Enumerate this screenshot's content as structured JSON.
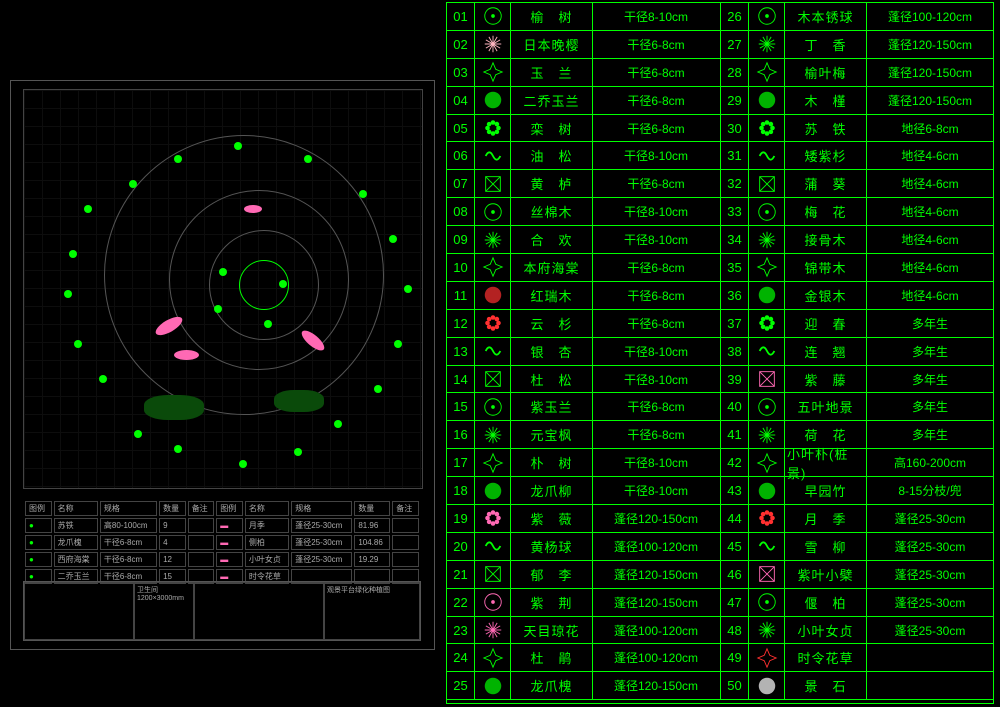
{
  "colors": {
    "bg": "#000000",
    "line": "#00ff00",
    "grid": "#222222",
    "border": "#555555",
    "pink": "#ff69b4",
    "red": "#ff3030",
    "cyan": "#00ffff"
  },
  "drawing": {
    "title": "观景平台绿化种植图",
    "subtitle": "卫生间1200×3000mm",
    "scale": "1:200"
  },
  "small_legend": {
    "headers": [
      "图例",
      "名称",
      "规格",
      "数量",
      "备注"
    ],
    "left": [
      {
        "name": "苏铁",
        "spec": "高80-100cm",
        "qty": "9"
      },
      {
        "name": "龙爪槐",
        "spec": "干径6-8cm",
        "qty": "4"
      },
      {
        "name": "西府海棠",
        "spec": "干径6-8cm",
        "qty": "12"
      },
      {
        "name": "二乔玉兰",
        "spec": "干径6-8cm",
        "qty": "15"
      }
    ],
    "right": [
      {
        "name": "月季",
        "spec": "蓬径25-30cm",
        "qty": "81.96"
      },
      {
        "name": "侧柏",
        "spec": "蓬径25-30cm",
        "qty": "104.86"
      },
      {
        "name": "小叶女贞",
        "spec": "蓬径25-30cm",
        "qty": "19.29"
      },
      {
        "name": "时令花草",
        "spec": "",
        "qty": ""
      }
    ]
  },
  "plants": [
    {
      "n": "01",
      "name": "榆　树",
      "spec": "干径8-10cm",
      "c": "#00ff00"
    },
    {
      "n": "02",
      "name": "日本晚樱",
      "spec": "干径6-8cm",
      "c": "#ffb6c1"
    },
    {
      "n": "03",
      "name": "玉　兰",
      "spec": "干径6-8cm",
      "c": "#00ff00"
    },
    {
      "n": "04",
      "name": "二乔玉兰",
      "spec": "干径6-8cm",
      "c": "#00ff00"
    },
    {
      "n": "05",
      "name": "栾　树",
      "spec": "干径6-8cm",
      "c": "#00ff00"
    },
    {
      "n": "06",
      "name": "油　松",
      "spec": "干径8-10cm",
      "c": "#00ff00"
    },
    {
      "n": "07",
      "name": "黄　栌",
      "spec": "干径6-8cm",
      "c": "#00ff00"
    },
    {
      "n": "08",
      "name": "丝棉木",
      "spec": "干径8-10cm",
      "c": "#00ff00"
    },
    {
      "n": "09",
      "name": "合　欢",
      "spec": "干径8-10cm",
      "c": "#00ff00"
    },
    {
      "n": "10",
      "name": "本府海棠",
      "spec": "干径6-8cm",
      "c": "#00ff00"
    },
    {
      "n": "11",
      "name": "红瑞木",
      "spec": "干径6-8cm",
      "c": "#ff3030"
    },
    {
      "n": "12",
      "name": "云　杉",
      "spec": "干径6-8cm",
      "c": "#ff3030"
    },
    {
      "n": "13",
      "name": "银　杏",
      "spec": "干径8-10cm",
      "c": "#00ff00"
    },
    {
      "n": "14",
      "name": "杜　松",
      "spec": "干径8-10cm",
      "c": "#00ff00"
    },
    {
      "n": "15",
      "name": "紫玉兰",
      "spec": "干径6-8cm",
      "c": "#00ff00"
    },
    {
      "n": "16",
      "name": "元宝枫",
      "spec": "干径6-8cm",
      "c": "#00ff00"
    },
    {
      "n": "17",
      "name": "朴　树",
      "spec": "干径8-10cm",
      "c": "#00ff00"
    },
    {
      "n": "18",
      "name": "龙爪柳",
      "spec": "干径8-10cm",
      "c": "#00ff00"
    },
    {
      "n": "19",
      "name": "紫　薇",
      "spec": "蓬径120-150cm",
      "c": "#ff69b4"
    },
    {
      "n": "20",
      "name": "黄杨球",
      "spec": "蓬径100-120cm",
      "c": "#00ff00"
    },
    {
      "n": "21",
      "name": "郁　李",
      "spec": "蓬径120-150cm",
      "c": "#00ff00"
    },
    {
      "n": "22",
      "name": "紫　荆",
      "spec": "蓬径120-150cm",
      "c": "#ff69b4"
    },
    {
      "n": "23",
      "name": "天目琼花",
      "spec": "蓬径100-120cm",
      "c": "#ff69b4"
    },
    {
      "n": "24",
      "name": "杜　鹃",
      "spec": "蓬径100-120cm",
      "c": "#00ff00"
    },
    {
      "n": "25",
      "name": "龙爪槐",
      "spec": "蓬径120-150cm",
      "c": "#00ff00"
    },
    {
      "n": "26",
      "name": "木本锈球",
      "spec": "蓬径100-120cm",
      "c": "#00ff00"
    },
    {
      "n": "27",
      "name": "丁　香",
      "spec": "蓬径120-150cm",
      "c": "#00ff00"
    },
    {
      "n": "28",
      "name": "榆叶梅",
      "spec": "蓬径120-150cm",
      "c": "#00ff00"
    },
    {
      "n": "29",
      "name": "木　槿",
      "spec": "蓬径120-150cm",
      "c": "#00ff00"
    },
    {
      "n": "30",
      "name": "苏　铁",
      "spec": "地径6-8cm",
      "c": "#00ff00"
    },
    {
      "n": "31",
      "name": "矮紫杉",
      "spec": "地径4-6cm",
      "c": "#00ff00"
    },
    {
      "n": "32",
      "name": "蒲　葵",
      "spec": "地径4-6cm",
      "c": "#00ff00"
    },
    {
      "n": "33",
      "name": "梅　花",
      "spec": "地径4-6cm",
      "c": "#00ff00"
    },
    {
      "n": "34",
      "name": "接骨木",
      "spec": "地径4-6cm",
      "c": "#00ff00"
    },
    {
      "n": "35",
      "name": "锦带木",
      "spec": "地径4-6cm",
      "c": "#00ff00"
    },
    {
      "n": "36",
      "name": "金银木",
      "spec": "地径4-6cm",
      "c": "#00ff00"
    },
    {
      "n": "37",
      "name": "迎　春",
      "spec": "多年生",
      "c": "#00ff00"
    },
    {
      "n": "38",
      "name": "连　翘",
      "spec": "多年生",
      "c": "#00ff00"
    },
    {
      "n": "39",
      "name": "紫　藤",
      "spec": "多年生",
      "c": "#ff69b4"
    },
    {
      "n": "40",
      "name": "五叶地景",
      "spec": "多年生",
      "c": "#00ff00"
    },
    {
      "n": "41",
      "name": "荷　花",
      "spec": "多年生",
      "c": "#00ff00"
    },
    {
      "n": "42",
      "name": "小叶朴(桩景)",
      "spec": "高160-200cm",
      "c": "#00ff00"
    },
    {
      "n": "43",
      "name": "早园竹",
      "spec": "8-15分枝/兜",
      "c": "#00ff00"
    },
    {
      "n": "44",
      "name": "月　季",
      "spec": "蓬径25-30cm",
      "c": "#ff3030"
    },
    {
      "n": "45",
      "name": "雪　柳",
      "spec": "蓬径25-30cm",
      "c": "#00ff00"
    },
    {
      "n": "46",
      "name": "紫叶小檗",
      "spec": "蓬径25-30cm",
      "c": "#ff69b4"
    },
    {
      "n": "47",
      "name": "偃　柏",
      "spec": "蓬径25-30cm",
      "c": "#00ff00"
    },
    {
      "n": "48",
      "name": "小叶女贞",
      "spec": "蓬径25-30cm",
      "c": "#00ff00"
    },
    {
      "n": "49",
      "name": "时令花草",
      "spec": "",
      "c": "#ff3030"
    },
    {
      "n": "50",
      "name": "景　石",
      "spec": "",
      "c": "#ffffff"
    }
  ]
}
